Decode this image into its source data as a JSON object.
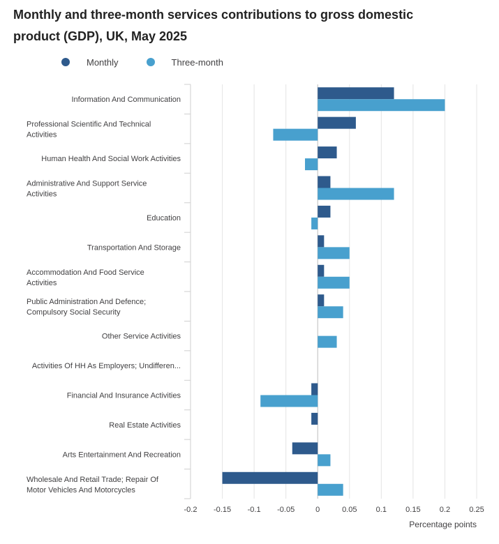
{
  "title": "Monthly and three-month services contributions to gross domestic product (GDP), UK, May 2025",
  "legend": [
    {
      "name": "Monthly",
      "color": "#2e5a8c"
    },
    {
      "name": "Three-month",
      "color": "#48a0ce"
    }
  ],
  "chart_data": {
    "type": "bar",
    "orientation": "horizontal",
    "title": "Monthly and three-month services contributions to gross domestic product (GDP), UK, May 2025",
    "xlabel": "Percentage points",
    "ylabel": "",
    "xlim": [
      -0.2,
      0.25
    ],
    "xticks": [
      -0.2,
      -0.15,
      -0.1,
      -0.05,
      0,
      0.05,
      0.1,
      0.15,
      0.2,
      0.25
    ],
    "xtick_labels": [
      "-0.2",
      "-0.15",
      "-0.1",
      "-0.05",
      "0",
      "0.05",
      "0.1",
      "0.15",
      "0.2",
      "0.25"
    ],
    "grid": true,
    "categories": [
      {
        "lines": [
          "Information And Communication"
        ]
      },
      {
        "lines": [
          "Professional Scientific And Technical",
          "Activities"
        ]
      },
      {
        "lines": [
          "Human Health And Social Work Activities"
        ]
      },
      {
        "lines": [
          "Administrative And Support Service",
          "Activities"
        ]
      },
      {
        "lines": [
          "Education"
        ]
      },
      {
        "lines": [
          "Transportation And Storage"
        ]
      },
      {
        "lines": [
          "Accommodation And Food Service",
          "Activities"
        ]
      },
      {
        "lines": [
          "Public Administration And Defence;",
          "Compulsory Social Security"
        ]
      },
      {
        "lines": [
          "Other Service Activities"
        ]
      },
      {
        "lines": [
          "Activities Of HH As Employers; Undifferen..."
        ]
      },
      {
        "lines": [
          "Financial And Insurance Activities"
        ]
      },
      {
        "lines": [
          "Real Estate Activities"
        ]
      },
      {
        "lines": [
          "Arts Entertainment And Recreation"
        ]
      },
      {
        "lines": [
          "Wholesale And Retail Trade; Repair Of",
          "Motor Vehicles And Motorcycles"
        ]
      }
    ],
    "series": [
      {
        "name": "Monthly",
        "color": "#2e5a8c",
        "values": [
          0.12,
          0.06,
          0.03,
          0.02,
          0.02,
          0.01,
          0.01,
          0.01,
          0,
          0,
          -0.01,
          -0.01,
          -0.04,
          -0.15
        ]
      },
      {
        "name": "Three-month",
        "color": "#48a0ce",
        "values": [
          0.2,
          -0.07,
          -0.02,
          0.12,
          -0.01,
          0.05,
          0.05,
          0.04,
          0.03,
          0,
          -0.09,
          0,
          0.02,
          0.04
        ]
      }
    ]
  }
}
